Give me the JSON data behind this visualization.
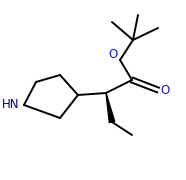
{
  "bg_color": "#ffffff",
  "bond_color": "#000000",
  "atom_colors": {
    "O": "#1a1acd",
    "N": "#00008b",
    "C": "#000000"
  },
  "line_width": 1.4,
  "font_size": 8.5,
  "figsize": [
    1.86,
    1.8
  ],
  "dpi": 100,
  "xlim": [
    0,
    186
  ],
  "ylim": [
    0,
    180
  ]
}
